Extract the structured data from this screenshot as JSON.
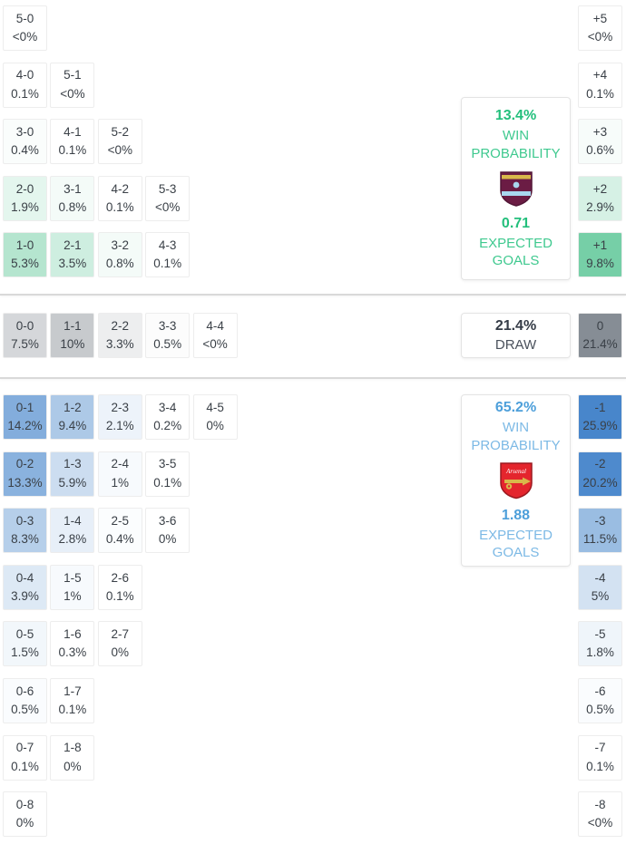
{
  "colors": {
    "cell_text": "#3a4047",
    "divider": "#d9d9d9",
    "home_value": "#23bf7c",
    "home_label": "#3fc98f",
    "draw_value": "#343b46",
    "draw_label": "#4a515c",
    "away_value": "#4d9fda",
    "away_label": "#7cb9e5",
    "home_rgb": "60,186,130",
    "draw_rgb": "108,117,126",
    "away_rgb": "62,128,200",
    "burnley_claret": "#6b1c44",
    "burnley_blue": "#a9d7ef",
    "arsenal_red": "#e4252d",
    "arsenal_gold": "#d9b84a"
  },
  "chart_data": {
    "type": "heatmap",
    "title": "Match score probability matrix",
    "legend_position": "right",
    "home": {
      "team": "Burnley",
      "rows": [
        [
          {
            "score": "5-0",
            "pct": "<0%"
          }
        ],
        [
          {
            "score": "4-0",
            "pct": "0.1%"
          },
          {
            "score": "5-1",
            "pct": "<0%"
          }
        ],
        [
          {
            "score": "3-0",
            "pct": "0.4%"
          },
          {
            "score": "4-1",
            "pct": "0.1%"
          },
          {
            "score": "5-2",
            "pct": "<0%"
          }
        ],
        [
          {
            "score": "2-0",
            "pct": "1.9%"
          },
          {
            "score": "3-1",
            "pct": "0.8%"
          },
          {
            "score": "4-2",
            "pct": "0.1%"
          },
          {
            "score": "5-3",
            "pct": "<0%"
          }
        ],
        [
          {
            "score": "1-0",
            "pct": "5.3%"
          },
          {
            "score": "2-1",
            "pct": "3.5%"
          },
          {
            "score": "3-2",
            "pct": "0.8%"
          },
          {
            "score": "4-3",
            "pct": "0.1%"
          }
        ]
      ],
      "diff": [
        {
          "label": "+5",
          "pct": "<0%"
        },
        {
          "label": "+4",
          "pct": "0.1%"
        },
        {
          "label": "+3",
          "pct": "0.6%"
        },
        {
          "label": "+2",
          "pct": "2.9%"
        },
        {
          "label": "+1",
          "pct": "9.8%"
        }
      ],
      "panel": {
        "win_pct": "13.4%",
        "win_label": "WIN PROBABILITY",
        "xg": "0.71",
        "xg_label": "EXPECTED GOALS"
      }
    },
    "draw": {
      "row": [
        {
          "score": "0-0",
          "pct": "7.5%"
        },
        {
          "score": "1-1",
          "pct": "10%"
        },
        {
          "score": "2-2",
          "pct": "3.3%"
        },
        {
          "score": "3-3",
          "pct": "0.5%"
        },
        {
          "score": "4-4",
          "pct": "<0%"
        }
      ],
      "diff": [
        {
          "label": "0",
          "pct": "21.4%"
        }
      ],
      "panel": {
        "pct": "21.4%",
        "label": "DRAW"
      }
    },
    "away": {
      "team": "Arsenal",
      "rows": [
        [
          {
            "score": "0-1",
            "pct": "14.2%"
          },
          {
            "score": "1-2",
            "pct": "9.4%"
          },
          {
            "score": "2-3",
            "pct": "2.1%"
          },
          {
            "score": "3-4",
            "pct": "0.2%"
          },
          {
            "score": "4-5",
            "pct": "0%"
          }
        ],
        [
          {
            "score": "0-2",
            "pct": "13.3%"
          },
          {
            "score": "1-3",
            "pct": "5.9%"
          },
          {
            "score": "2-4",
            "pct": "1%"
          },
          {
            "score": "3-5",
            "pct": "0.1%"
          }
        ],
        [
          {
            "score": "0-3",
            "pct": "8.3%"
          },
          {
            "score": "1-4",
            "pct": "2.8%"
          },
          {
            "score": "2-5",
            "pct": "0.4%"
          },
          {
            "score": "3-6",
            "pct": "0%"
          }
        ],
        [
          {
            "score": "0-4",
            "pct": "3.9%"
          },
          {
            "score": "1-5",
            "pct": "1%"
          },
          {
            "score": "2-6",
            "pct": "0.1%"
          }
        ],
        [
          {
            "score": "0-5",
            "pct": "1.5%"
          },
          {
            "score": "1-6",
            "pct": "0.3%"
          },
          {
            "score": "2-7",
            "pct": "0%"
          }
        ],
        [
          {
            "score": "0-6",
            "pct": "0.5%"
          },
          {
            "score": "1-7",
            "pct": "0.1%"
          }
        ],
        [
          {
            "score": "0-7",
            "pct": "0.1%"
          },
          {
            "score": "1-8",
            "pct": "0%"
          }
        ],
        [
          {
            "score": "0-8",
            "pct": "0%"
          }
        ]
      ],
      "diff": [
        {
          "label": "-1",
          "pct": "25.9%"
        },
        {
          "label": "-2",
          "pct": "20.2%"
        },
        {
          "label": "-3",
          "pct": "11.5%"
        },
        {
          "label": "-4",
          "pct": "5%"
        },
        {
          "label": "-5",
          "pct": "1.8%"
        },
        {
          "label": "-6",
          "pct": "0.5%"
        },
        {
          "label": "-7",
          "pct": "0.1%"
        },
        {
          "label": "-8",
          "pct": "<0%"
        }
      ],
      "panel": {
        "win_pct": "65.2%",
        "win_label": "WIN PROBABILITY",
        "xg": "1.88",
        "xg_label": "EXPECTED GOALS"
      }
    }
  }
}
